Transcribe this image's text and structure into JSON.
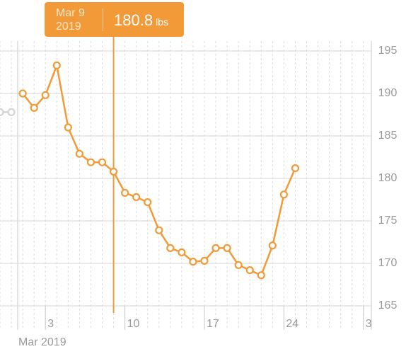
{
  "chart_data": {
    "type": "line",
    "x_label": "Mar 2019",
    "series": [
      {
        "color": "#d4d4d4",
        "x": [
          -1,
          0
        ],
        "values": [
          187.8,
          187.8
        ]
      },
      {
        "color": "#f29a38",
        "x": [
          1,
          2,
          3,
          4,
          5,
          6,
          7,
          8,
          9,
          10,
          11,
          12,
          13,
          14,
          15,
          16,
          17,
          18,
          19,
          20,
          21,
          22,
          23,
          24,
          25
        ],
        "values": [
          190.0,
          188.3,
          189.8,
          193.3,
          186.0,
          182.9,
          181.9,
          181.9,
          180.8,
          178.3,
          177.8,
          177.2,
          173.9,
          171.8,
          171.3,
          170.2,
          170.3,
          171.8,
          171.8,
          169.8,
          169.2,
          168.6,
          172.1,
          178.1,
          181.2
        ]
      }
    ],
    "xlim": [
      -1,
      31.7
    ],
    "xticks": [
      3,
      10,
      17,
      24,
      {
        "value": 31,
        "label": "3"
      }
    ],
    "ylim": [
      165,
      195
    ],
    "yticks": [
      165,
      170,
      175,
      180,
      185,
      190,
      195
    ],
    "grid": true,
    "tooltip": {
      "date": "Mar 9",
      "year": "2019",
      "value": 180.8,
      "unit": "lbs",
      "x": 9
    }
  }
}
